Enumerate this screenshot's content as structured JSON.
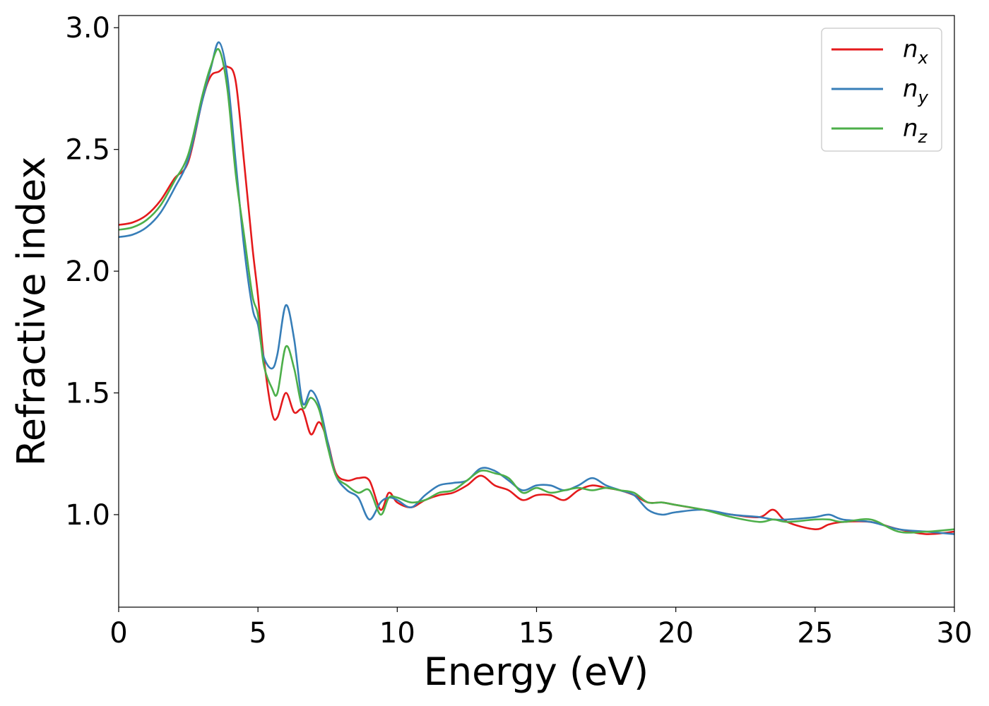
{
  "chart_data": {
    "type": "line",
    "title": "",
    "xlabel": "Energy (eV)",
    "ylabel": "Refractive index",
    "xlim": [
      0,
      30
    ],
    "ylim": [
      0.62,
      3.05
    ],
    "xticks": [
      0,
      5,
      10,
      15,
      20,
      25,
      30
    ],
    "xtick_labels": [
      "0",
      "5",
      "10",
      "15",
      "20",
      "25",
      "30"
    ],
    "yticks": [
      1.0,
      1.5,
      2.0,
      2.5,
      3.0
    ],
    "ytick_labels": [
      "1.0",
      "1.5",
      "2.0",
      "2.5",
      "3.0"
    ],
    "grid": false,
    "legend_position": "top-right",
    "series": [
      {
        "name": "n_x",
        "legend_base": "n",
        "legend_sub": "x",
        "color": "#e41a1c",
        "x": [
          0,
          0.5,
          1.0,
          1.5,
          2.0,
          2.5,
          3.0,
          3.3,
          3.6,
          3.9,
          4.2,
          4.5,
          4.8,
          5.0,
          5.2,
          5.5,
          5.7,
          6.0,
          6.3,
          6.6,
          6.9,
          7.2,
          7.5,
          7.8,
          8.2,
          8.6,
          9.0,
          9.4,
          9.7,
          10.0,
          10.5,
          11.0,
          11.5,
          12.0,
          12.5,
          13.0,
          13.5,
          14.0,
          14.5,
          15.0,
          15.5,
          16.0,
          16.5,
          17.0,
          17.5,
          18.0,
          18.5,
          19.0,
          19.5,
          20.0,
          21.0,
          22.0,
          23.0,
          23.5,
          24.0,
          25.0,
          25.5,
          26.0,
          27.0,
          28.0,
          29.0,
          30.0
        ],
        "y": [
          2.19,
          2.2,
          2.23,
          2.29,
          2.38,
          2.45,
          2.7,
          2.8,
          2.82,
          2.84,
          2.78,
          2.45,
          2.1,
          1.9,
          1.65,
          1.42,
          1.4,
          1.5,
          1.42,
          1.43,
          1.33,
          1.38,
          1.3,
          1.17,
          1.14,
          1.15,
          1.14,
          1.02,
          1.09,
          1.05,
          1.03,
          1.06,
          1.08,
          1.09,
          1.12,
          1.16,
          1.12,
          1.1,
          1.06,
          1.08,
          1.08,
          1.06,
          1.1,
          1.12,
          1.11,
          1.1,
          1.08,
          1.05,
          1.05,
          1.04,
          1.02,
          1.0,
          0.99,
          1.02,
          0.97,
          0.94,
          0.96,
          0.97,
          0.97,
          0.94,
          0.92,
          0.93
        ]
      },
      {
        "name": "n_y",
        "legend_base": "n",
        "legend_sub": "y",
        "color": "#377eb8",
        "x": [
          0,
          0.5,
          1.0,
          1.5,
          2.0,
          2.5,
          3.0,
          3.3,
          3.6,
          3.9,
          4.2,
          4.5,
          4.8,
          5.0,
          5.2,
          5.5,
          5.7,
          6.0,
          6.3,
          6.6,
          6.9,
          7.2,
          7.5,
          7.8,
          8.2,
          8.6,
          9.0,
          9.4,
          9.7,
          10.0,
          10.5,
          11.0,
          11.5,
          12.0,
          12.5,
          13.0,
          13.5,
          14.0,
          14.5,
          15.0,
          15.5,
          16.0,
          16.5,
          17.0,
          17.5,
          18.0,
          18.5,
          19.0,
          19.5,
          20.0,
          21.0,
          22.0,
          23.0,
          23.5,
          24.0,
          25.0,
          25.5,
          26.0,
          27.0,
          28.0,
          29.0,
          30.0
        ],
        "y": [
          2.14,
          2.15,
          2.18,
          2.24,
          2.34,
          2.46,
          2.7,
          2.83,
          2.94,
          2.8,
          2.45,
          2.1,
          1.85,
          1.78,
          1.65,
          1.6,
          1.66,
          1.86,
          1.72,
          1.46,
          1.51,
          1.45,
          1.3,
          1.16,
          1.1,
          1.07,
          0.98,
          1.05,
          1.07,
          1.06,
          1.03,
          1.08,
          1.12,
          1.13,
          1.14,
          1.19,
          1.18,
          1.14,
          1.1,
          1.12,
          1.12,
          1.1,
          1.12,
          1.15,
          1.12,
          1.1,
          1.08,
          1.02,
          1.0,
          1.01,
          1.02,
          1.0,
          0.99,
          0.98,
          0.98,
          0.99,
          1.0,
          0.98,
          0.97,
          0.94,
          0.93,
          0.92
        ]
      },
      {
        "name": "n_z",
        "legend_base": "n",
        "legend_sub": "z",
        "color": "#4daf4a",
        "x": [
          0,
          0.5,
          1.0,
          1.5,
          2.0,
          2.5,
          3.0,
          3.3,
          3.6,
          3.9,
          4.2,
          4.5,
          4.8,
          5.0,
          5.2,
          5.5,
          5.7,
          6.0,
          6.3,
          6.6,
          6.9,
          7.2,
          7.5,
          7.8,
          8.2,
          8.6,
          9.0,
          9.4,
          9.7,
          10.0,
          10.5,
          11.0,
          11.5,
          12.0,
          12.5,
          13.0,
          13.5,
          14.0,
          14.5,
          15.0,
          15.5,
          16.0,
          16.5,
          17.0,
          17.5,
          18.0,
          18.5,
          19.0,
          19.5,
          20.0,
          21.0,
          22.0,
          23.0,
          23.5,
          24.0,
          25.0,
          25.5,
          26.0,
          27.0,
          28.0,
          29.0,
          30.0
        ],
        "y": [
          2.17,
          2.18,
          2.21,
          2.27,
          2.37,
          2.48,
          2.72,
          2.84,
          2.91,
          2.75,
          2.4,
          2.15,
          1.9,
          1.82,
          1.62,
          1.52,
          1.5,
          1.69,
          1.6,
          1.44,
          1.48,
          1.43,
          1.28,
          1.16,
          1.12,
          1.09,
          1.1,
          1.0,
          1.07,
          1.07,
          1.05,
          1.06,
          1.09,
          1.1,
          1.14,
          1.18,
          1.17,
          1.15,
          1.09,
          1.11,
          1.09,
          1.1,
          1.11,
          1.1,
          1.11,
          1.1,
          1.09,
          1.05,
          1.05,
          1.04,
          1.02,
          0.99,
          0.97,
          0.98,
          0.97,
          0.98,
          0.98,
          0.97,
          0.98,
          0.93,
          0.93,
          0.94
        ]
      }
    ]
  }
}
